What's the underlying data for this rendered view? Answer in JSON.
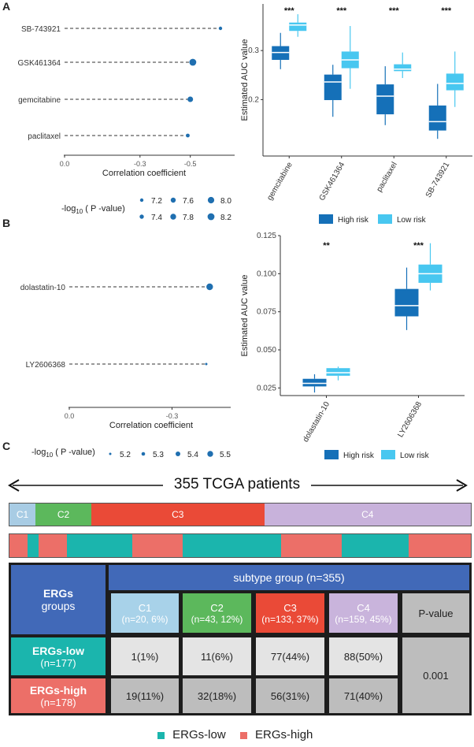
{
  "panels": {
    "a": "A",
    "b": "B",
    "c": "C"
  },
  "chart_data": [
    {
      "type": "scatter",
      "name": "A-lollipop",
      "categories": [
        "SB-743921",
        "GSK461364",
        "gemcitabine",
        "paclitaxel"
      ],
      "values": [
        -0.62,
        -0.51,
        -0.5,
        -0.49
      ],
      "sizes": [
        7.2,
        8.2,
        7.8,
        7.3
      ],
      "xlim": [
        0,
        -0.62
      ],
      "xticks": [
        0.0,
        -0.3,
        -0.5
      ],
      "xtick_labels": [
        "0.0",
        "-0.3",
        "-0.5"
      ],
      "xlabel": "Correlation coefficient",
      "size_legend_title": "-log10 ( P -value)",
      "size_legend": [
        "7.2",
        "7.6",
        "8.0",
        "7.4",
        "7.8",
        "8.2"
      ]
    },
    {
      "type": "box",
      "name": "A-boxplot",
      "categories": [
        "gemcitabine",
        "GSK461364",
        "paclitaxel",
        "SB-743921"
      ],
      "ylabel": "Estimated AUC value",
      "ylim": [
        0.085,
        0.395
      ],
      "yticks": [
        0.2,
        0.3
      ],
      "series": [
        {
          "name": "High risk",
          "color": "#1570b8",
          "boxes": [
            [
              0.262,
              0.281,
              0.296,
              0.309,
              0.336
            ],
            [
              0.165,
              0.199,
              0.236,
              0.251,
              0.271
            ],
            [
              0.148,
              0.17,
              0.207,
              0.231,
              0.268
            ],
            [
              0.12,
              0.137,
              0.155,
              0.188,
              0.232
            ]
          ]
        },
        {
          "name": "Low risk",
          "color": "#48c7f0",
          "boxes": [
            [
              0.328,
              0.34,
              0.352,
              0.357,
              0.374
            ],
            [
              0.222,
              0.264,
              0.281,
              0.298,
              0.35
            ],
            [
              0.244,
              0.258,
              0.262,
              0.272,
              0.296
            ],
            [
              0.185,
              0.219,
              0.233,
              0.253,
              0.298
            ]
          ]
        }
      ],
      "significance": [
        "***",
        "***",
        "***",
        "***"
      ],
      "legend": [
        "High risk",
        "Low risk"
      ]
    },
    {
      "type": "scatter",
      "name": "B-lollipop",
      "categories": [
        "dolastatin-10",
        "LY2606368"
      ],
      "values": [
        -0.41,
        -0.4
      ],
      "sizes": [
        5.5,
        5.1
      ],
      "xlim": [
        0,
        -0.43
      ],
      "xticks": [
        0.0,
        -0.3
      ],
      "xtick_labels": [
        "0.0",
        "-0.3"
      ],
      "xlabel": "Correlation coefficient",
      "size_legend_title": "-log10 ( P -value)",
      "size_legend": [
        "5.2",
        "5.3",
        "5.4",
        "5.5"
      ]
    },
    {
      "type": "box",
      "name": "B-boxplot",
      "categories": [
        "dolastatin-10",
        "LY2606368"
      ],
      "ylabel": "Estimated AUC value",
      "ylim": [
        0.02,
        0.125
      ],
      "yticks": [
        0.025,
        0.05,
        0.075,
        0.1,
        0.125
      ],
      "ytick_labels": [
        "0.025",
        "0.050",
        "0.075",
        "0.100",
        "0.125"
      ],
      "series": [
        {
          "name": "High risk",
          "color": "#1570b8",
          "boxes": [
            [
              0.022,
              0.026,
              0.028,
              0.031,
              0.034
            ],
            [
              0.063,
              0.072,
              0.079,
              0.09,
              0.104
            ]
          ]
        },
        {
          "name": "Low risk",
          "color": "#48c7f0",
          "boxes": [
            [
              0.03,
              0.033,
              0.035,
              0.038,
              0.039
            ],
            [
              0.089,
              0.094,
              0.1,
              0.106,
              0.12
            ]
          ]
        }
      ],
      "significance": [
        "**",
        "***"
      ],
      "legend": [
        "High risk",
        "Low risk"
      ]
    },
    {
      "type": "table",
      "name": "C-subtype-table",
      "cohort_label": "355 TCGA patients",
      "clusters": [
        {
          "label": "C1",
          "n": 20,
          "color": "#a8cce4"
        },
        {
          "label": "C2",
          "n": 43,
          "color": "#5cb85c"
        },
        {
          "label": "C3",
          "n": 133,
          "color": "#ea4a37"
        },
        {
          "label": "C4",
          "n": 159,
          "color": "#c8b2db"
        }
      ],
      "risk_strip": [
        {
          "group": "high",
          "n": 12
        },
        {
          "group": "low",
          "n": 7
        },
        {
          "group": "high",
          "n": 19
        },
        {
          "group": "low",
          "n": 43
        },
        {
          "group": "high",
          "n": 33
        },
        {
          "group": "low",
          "n": 65
        },
        {
          "group": "high",
          "n": 40
        },
        {
          "group": "low",
          "n": 44
        },
        {
          "group": "high",
          "n": 41
        }
      ],
      "row_header": {
        "title": "ERGs",
        "subtitle": "groups"
      },
      "group_header": "subtype group (n=355)",
      "columns": [
        {
          "name": "C1",
          "sub": "(n=20, 6%)",
          "color": "#a8d2e9"
        },
        {
          "name": "C2",
          "sub": "(n=43, 12%)",
          "color": "#5cb85c"
        },
        {
          "name": "C3",
          "sub": "(n=133, 37%)",
          "color": "#ea4a37"
        },
        {
          "name": "C4",
          "sub": "(n=159, 45%)",
          "color": "#c9b4dc"
        }
      ],
      "pvalue_header": "P-value",
      "rows": [
        {
          "name": "ERGs-low",
          "sub": "(n=177)",
          "values": [
            "1(1%)",
            "11(6%)",
            "77(44%)",
            "88(50%)"
          ]
        },
        {
          "name": "ERGs-high",
          "sub": "(n=178)",
          "values": [
            "19(11%)",
            "32(18%)",
            "56(31%)",
            "71(40%)"
          ]
        }
      ],
      "pvalue": "0.001",
      "legend": [
        "ERGs-low",
        "ERGs-high"
      ]
    }
  ],
  "colors": {
    "high_risk": "#1570b8",
    "low_risk": "#48c7f0",
    "ergs_low": "#1bb5ad",
    "ergs_high": "#ec6f68",
    "header_blue": "#4169b8",
    "cell_light": "#e4e4e4",
    "cell_grey": "#bdbdbd",
    "dot": "#1f6fb0"
  }
}
